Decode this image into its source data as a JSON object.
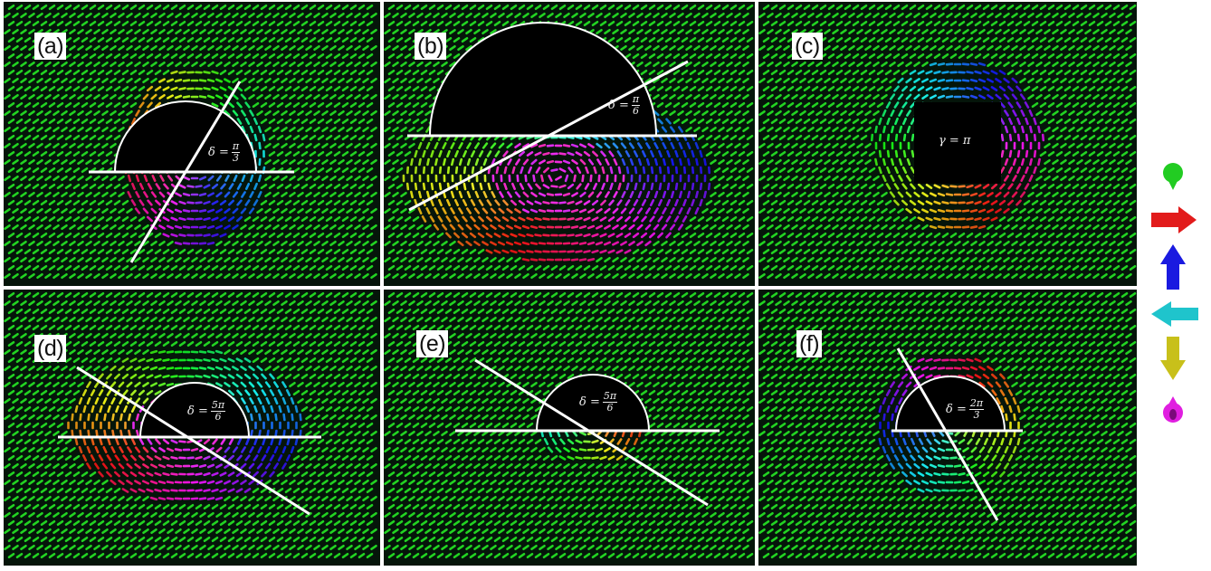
{
  "panels": [
    {
      "id": "a",
      "label": "(a)",
      "delta_label": "δ =",
      "delta_num": "π",
      "delta_den": "3"
    },
    {
      "id": "b",
      "label": "(b)",
      "delta_label": "δ =",
      "delta_num": "π",
      "delta_den": "6"
    },
    {
      "id": "c",
      "label": "(c)",
      "gamma_label": "γ = π"
    },
    {
      "id": "d",
      "label": "(d)",
      "delta_label": "δ =",
      "delta_num": "5π",
      "delta_den": "6"
    },
    {
      "id": "e",
      "label": "(e)",
      "delta_label": "δ =",
      "delta_num": "5π",
      "delta_den": "6"
    },
    {
      "id": "f",
      "label": "(f)",
      "delta_label": "δ =",
      "delta_num": "2π",
      "delta_den": "3"
    }
  ],
  "legend": [
    {
      "icon": "sphere-icon",
      "color": "#22cc22"
    },
    {
      "icon": "arrow-right-icon",
      "color": "#e21b1b"
    },
    {
      "icon": "arrow-up-icon",
      "color": "#1a1ae0"
    },
    {
      "icon": "arrow-left-icon",
      "color": "#1fc4cc"
    },
    {
      "icon": "arrow-down-icon",
      "color": "#c8c01a"
    },
    {
      "icon": "sphere-down-icon",
      "color": "#e01ee0"
    }
  ],
  "colors": {
    "background": "#05150a",
    "spin_green": "#22d322",
    "line": "#ffffff"
  }
}
